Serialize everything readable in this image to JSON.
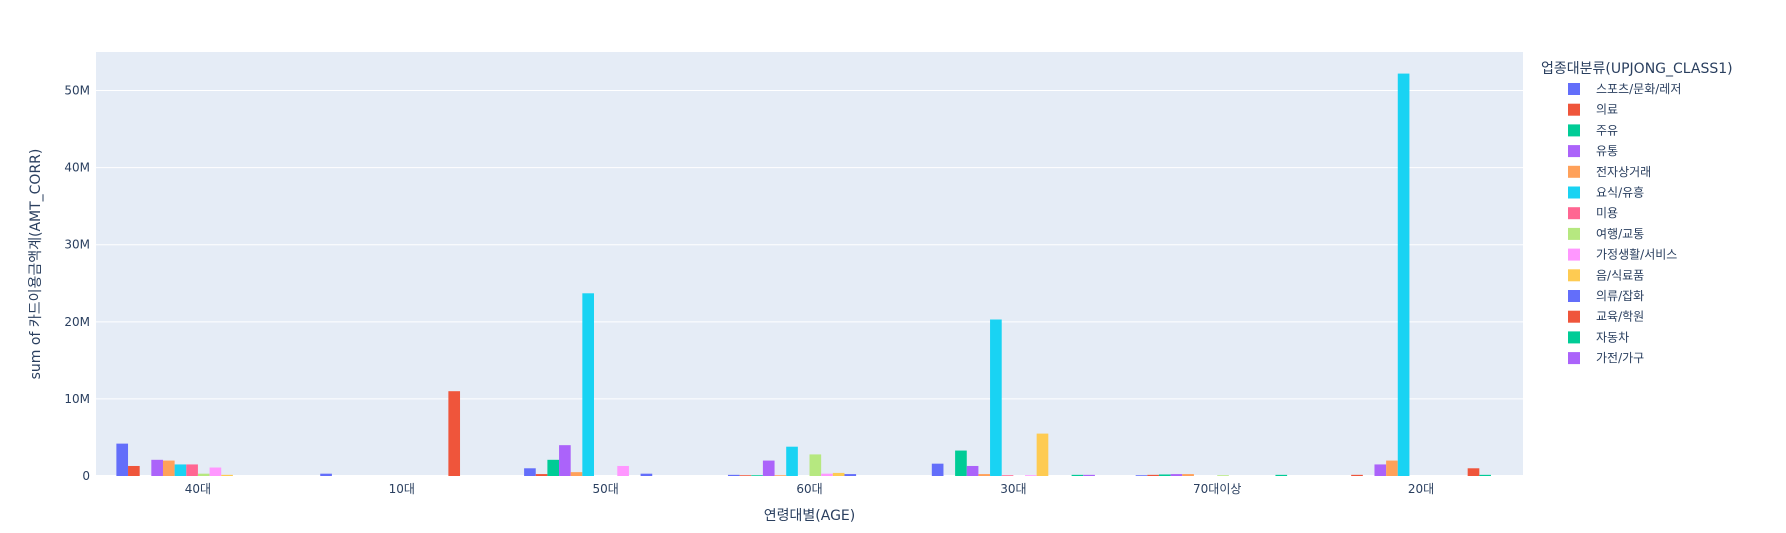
{
  "chart_data": {
    "type": "bar",
    "title": "",
    "xlabel": "연령대별(AGE)",
    "ylabel": "sum of 카드이용금액계(AMT_CORR)",
    "ylim": [
      0,
      55000000
    ],
    "yticks": [
      {
        "value": 0,
        "label": "0"
      },
      {
        "value": 10000000,
        "label": "10M"
      },
      {
        "value": 20000000,
        "label": "20M"
      },
      {
        "value": 30000000,
        "label": "30M"
      },
      {
        "value": 40000000,
        "label": "40M"
      },
      {
        "value": 50000000,
        "label": "50M"
      }
    ],
    "grid": true,
    "legend_title": "업종대분류(UPJONG_CLASS1)",
    "legend_position": "right",
    "categories": [
      "40대",
      "10대",
      "50대",
      "60대",
      "30대",
      "70대이상",
      "20대"
    ],
    "series": [
      {
        "name": "스포츠/문화/레저",
        "color": "#636efa",
        "values": [
          4200000,
          300000,
          1000000,
          150000,
          1600000,
          100000,
          0
        ]
      },
      {
        "name": "의료",
        "color": "#EF553B",
        "values": [
          1300000,
          0,
          250000,
          100000,
          0,
          150000,
          150000
        ]
      },
      {
        "name": "주유",
        "color": "#00cc96",
        "values": [
          0,
          0,
          2100000,
          100000,
          3300000,
          200000,
          0
        ]
      },
      {
        "name": "유통",
        "color": "#ab63fa",
        "values": [
          2100000,
          0,
          4000000,
          2000000,
          1300000,
          250000,
          1500000
        ]
      },
      {
        "name": "전자상거래",
        "color": "#FFA15A",
        "values": [
          2000000,
          0,
          500000,
          100000,
          250000,
          250000,
          2000000
        ]
      },
      {
        "name": "요식/유흥",
        "color": "#19d3f3",
        "values": [
          1500000,
          0,
          23700000,
          3800000,
          20300000,
          0,
          52200000
        ]
      },
      {
        "name": "미용",
        "color": "#FF6692",
        "values": [
          1500000,
          0,
          0,
          0,
          100000,
          0,
          0
        ]
      },
      {
        "name": "여행/교통",
        "color": "#B6E880",
        "values": [
          300000,
          0,
          0,
          2800000,
          0,
          100000,
          0
        ]
      },
      {
        "name": "가정생활/서비스",
        "color": "#FF97FF",
        "values": [
          1100000,
          0,
          1300000,
          300000,
          100000,
          0,
          0
        ]
      },
      {
        "name": "음/식료품",
        "color": "#FECB52",
        "values": [
          150000,
          0,
          0,
          400000,
          5500000,
          0,
          0
        ]
      },
      {
        "name": "의류/잡화",
        "color": "#636efa",
        "values": [
          0,
          0,
          300000,
          250000,
          0,
          0,
          0
        ]
      },
      {
        "name": "교육/학원",
        "color": "#EF553B",
        "values": [
          0,
          11000000,
          0,
          0,
          0,
          0,
          1000000
        ]
      },
      {
        "name": "자동차",
        "color": "#00cc96",
        "values": [
          0,
          0,
          0,
          0,
          150000,
          150000,
          150000
        ]
      },
      {
        "name": "가전/가구",
        "color": "#ab63fa",
        "values": [
          0,
          0,
          0,
          0,
          150000,
          0,
          0
        ]
      }
    ]
  }
}
